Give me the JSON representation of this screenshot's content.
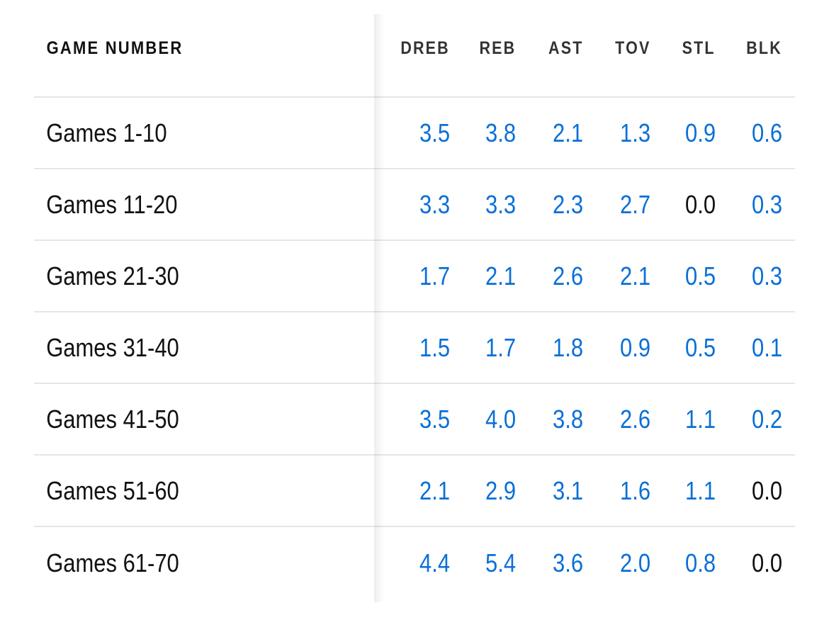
{
  "table": {
    "first_header": "GAME NUMBER",
    "columns": [
      "DREB",
      "REB",
      "AST",
      "TOV",
      "STL",
      "BLK"
    ],
    "rows": [
      {
        "label": "Games 1-10",
        "values": [
          "3.5",
          "3.8",
          "2.1",
          "1.3",
          "0.9",
          "0.6"
        ]
      },
      {
        "label": "Games 11-20",
        "values": [
          "3.3",
          "3.3",
          "2.3",
          "2.7",
          "0.0",
          "0.3"
        ]
      },
      {
        "label": "Games 21-30",
        "values": [
          "1.7",
          "2.1",
          "2.6",
          "2.1",
          "0.5",
          "0.3"
        ]
      },
      {
        "label": "Games 31-40",
        "values": [
          "1.5",
          "1.7",
          "1.8",
          "0.9",
          "0.5",
          "0.1"
        ]
      },
      {
        "label": "Games 41-50",
        "values": [
          "3.5",
          "4.0",
          "3.8",
          "2.6",
          "1.1",
          "0.2"
        ]
      },
      {
        "label": "Games 51-60",
        "values": [
          "2.1",
          "2.9",
          "3.1",
          "1.6",
          "1.1",
          "0.0"
        ]
      },
      {
        "label": "Games 61-70",
        "values": [
          "4.4",
          "5.4",
          "3.6",
          "2.0",
          "0.8",
          "0.0"
        ]
      }
    ]
  },
  "colors": {
    "link": "#0a6fd6",
    "zero": "#111111",
    "header": "#333333"
  }
}
